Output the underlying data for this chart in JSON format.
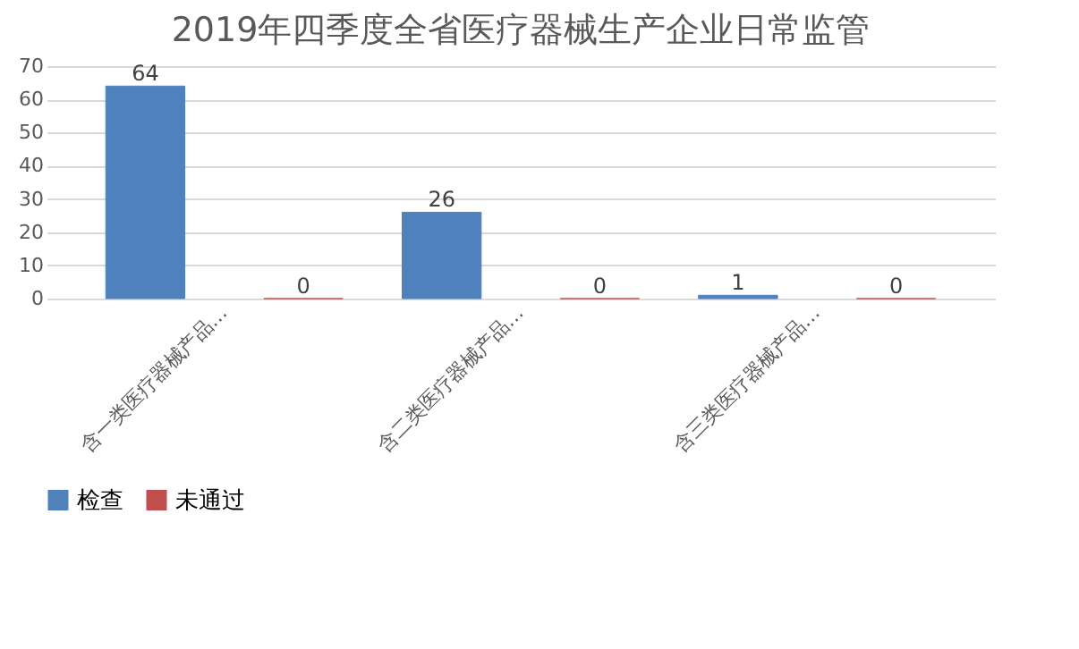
{
  "chart_data": {
    "type": "bar",
    "title": "2019年四季度全省医疗器械生产企业日常监管",
    "categories": [
      "含一类医疗器械产品…",
      "含二类医疗器械产品…",
      "含三类医疗器械产品…"
    ],
    "series": [
      {
        "name": "检查",
        "color": "#4f81bd",
        "values": [
          64,
          26,
          1
        ]
      },
      {
        "name": "未通过",
        "color": "#c0504d",
        "values": [
          0,
          0,
          0
        ]
      }
    ],
    "ylim": [
      0,
      70
    ],
    "yticks": [
      0,
      10,
      20,
      30,
      40,
      50,
      60,
      70
    ],
    "grid": "y",
    "legend": "bottom",
    "data_labels": true
  }
}
